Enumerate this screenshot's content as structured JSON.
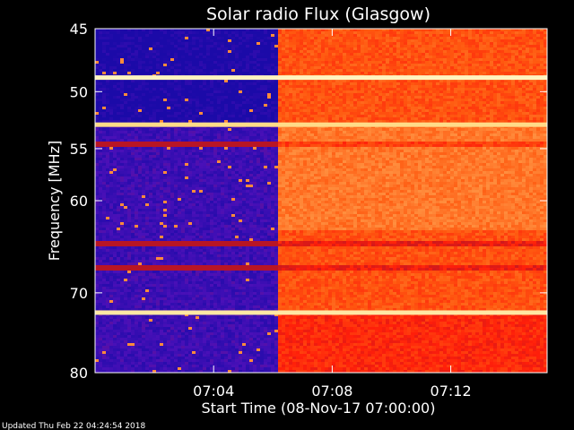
{
  "chart_data": {
    "type": "heatmap",
    "title": "Solar radio Flux (Glasgow)",
    "ylabel": "Frequency [MHz]",
    "xlabel": "Start Time (08-Nov-17 07:00:00)",
    "footer": "Updated Thu Feb 22 04:24:54 2018",
    "y_ticks": [
      45,
      50,
      55,
      60,
      70,
      80
    ],
    "y_tick_labels": [
      "45",
      "50",
      "55",
      "60",
      "70",
      "80"
    ],
    "x_ticks": [
      4,
      8,
      12
    ],
    "x_tick_labels": [
      "07:04",
      "07:08",
      "07:12"
    ],
    "x_range_minutes": [
      0,
      15.25
    ],
    "y_range_mhz": [
      45,
      80
    ],
    "y_scale": "log",
    "color_map": [
      "#1b0aa8",
      "#4a10b8",
      "#b01428",
      "#ff1e0a",
      "#ff5a10",
      "#ff9040",
      "#ffd070",
      "#fff4c0"
    ],
    "transition_minute": 6.1,
    "pre_transition_level": 0.1,
    "post_transition_level": 0.55,
    "bright_bands_mhz": [
      {
        "freq": 48.8,
        "level": 1.0
      },
      {
        "freq": 52.8,
        "level": 0.9
      },
      {
        "freq": 72.3,
        "level": 0.95
      }
    ],
    "dark_bands_mhz": [
      {
        "freq": 54.5,
        "level": 0.35
      },
      {
        "freq": 64.5,
        "level": 0.3
      },
      {
        "freq": 67.0,
        "level": 0.25
      }
    ]
  }
}
